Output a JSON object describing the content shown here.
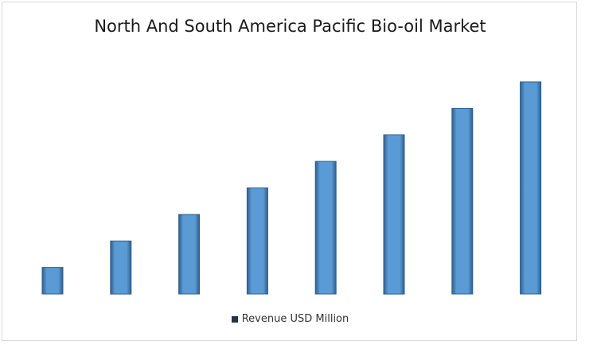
{
  "chart_data": {
    "type": "bar",
    "title": "North And South America Pacific Bio-oil Market",
    "categories": [
      "",
      "",
      "",
      "",
      "",
      "",
      "",
      ""
    ],
    "series": [
      {
        "name": "Revenue USD Million",
        "values": [
          1,
          2,
          3,
          4,
          5,
          6,
          7,
          8
        ]
      }
    ],
    "xlabel": "",
    "ylabel": "",
    "ylim": [
      0,
      8
    ],
    "grid": false,
    "legend_position": "bottom"
  },
  "colors": {
    "bar_fill": "#5b9bd5",
    "bar_edge": "#2e5f8e",
    "legend_swatch": "#1f3549"
  }
}
